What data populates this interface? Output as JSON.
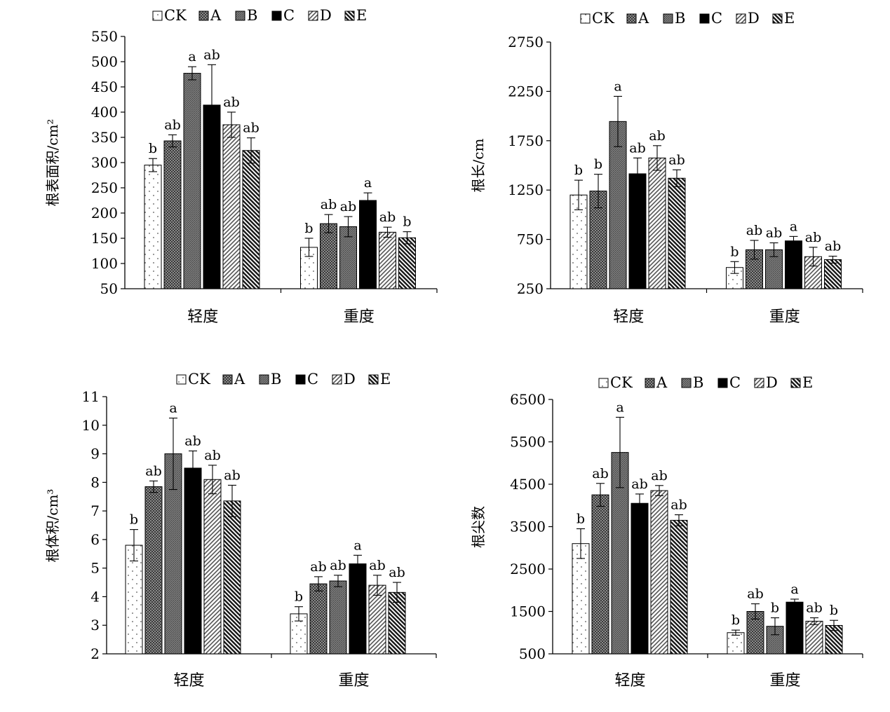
{
  "legend": {
    "entries": [
      "CK",
      "A",
      "B",
      "C",
      "D",
      "E"
    ]
  },
  "chart_data": [
    {
      "type": "bar",
      "ylabel": "根表面积/cm²",
      "ylim": [
        50,
        550
      ],
      "yticks": [
        50,
        100,
        150,
        200,
        250,
        300,
        350,
        400,
        450,
        500,
        550
      ],
      "categories": [
        "轻度",
        "重度"
      ],
      "legend_position": "top",
      "series": [
        {
          "name": "CK",
          "values": [
            295,
            132
          ],
          "errors": [
            13,
            18
          ],
          "labels": [
            "b",
            "b"
          ]
        },
        {
          "name": "A",
          "values": [
            343,
            179
          ],
          "errors": [
            12,
            18
          ],
          "labels": [
            "ab",
            "ab"
          ]
        },
        {
          "name": "B",
          "values": [
            477,
            173
          ],
          "errors": [
            13,
            20
          ],
          "labels": [
            "a",
            "ab"
          ]
        },
        {
          "name": "C",
          "values": [
            414,
            225
          ],
          "errors": [
            80,
            15
          ],
          "labels": [
            "ab",
            "a"
          ]
        },
        {
          "name": "D",
          "values": [
            375,
            162
          ],
          "errors": [
            25,
            10
          ],
          "labels": [
            "ab",
            "ab"
          ]
        },
        {
          "name": "E",
          "values": [
            324,
            151
          ],
          "errors": [
            25,
            12
          ],
          "labels": [
            "ab",
            "b"
          ]
        }
      ]
    },
    {
      "type": "bar",
      "ylabel": "根长/cm",
      "ylim": [
        250,
        2750
      ],
      "yticks": [
        250,
        750,
        1250,
        1750,
        2250,
        2750
      ],
      "categories": [
        "轻度",
        "重度"
      ],
      "legend_position": "top",
      "series": [
        {
          "name": "CK",
          "values": [
            1200,
            465
          ],
          "errors": [
            150,
            60
          ],
          "labels": [
            "b",
            "b"
          ]
        },
        {
          "name": "A",
          "values": [
            1240,
            645
          ],
          "errors": [
            170,
            95
          ],
          "labels": [
            "b",
            "ab"
          ]
        },
        {
          "name": "B",
          "values": [
            1945,
            645
          ],
          "errors": [
            255,
            70
          ],
          "labels": [
            "a",
            "ab"
          ]
        },
        {
          "name": "C",
          "values": [
            1415,
            735
          ],
          "errors": [
            160,
            45
          ],
          "labels": [
            "ab",
            "a"
          ]
        },
        {
          "name": "D",
          "values": [
            1575,
            575
          ],
          "errors": [
            125,
            95
          ],
          "labels": [
            "ab",
            "ab"
          ]
        },
        {
          "name": "E",
          "values": [
            1370,
            545
          ],
          "errors": [
            85,
            35
          ],
          "labels": [
            "ab",
            "ab"
          ]
        }
      ]
    },
    {
      "type": "bar",
      "ylabel": "根体积/cm³",
      "ylim": [
        2,
        11
      ],
      "yticks": [
        2,
        3,
        4,
        5,
        6,
        7,
        8,
        9,
        10,
        11
      ],
      "categories": [
        "轻度",
        "重度"
      ],
      "legend_position": "top",
      "series": [
        {
          "name": "CK",
          "values": [
            5.8,
            3.4
          ],
          "errors": [
            0.55,
            0.25
          ],
          "labels": [
            "b",
            "b"
          ]
        },
        {
          "name": "A",
          "values": [
            7.85,
            4.45
          ],
          "errors": [
            0.2,
            0.25
          ],
          "labels": [
            "ab",
            "ab"
          ]
        },
        {
          "name": "B",
          "values": [
            9.0,
            4.55
          ],
          "errors": [
            1.25,
            0.2
          ],
          "labels": [
            "a",
            "ab"
          ]
        },
        {
          "name": "C",
          "values": [
            8.5,
            5.15
          ],
          "errors": [
            0.6,
            0.3
          ],
          "labels": [
            "ab",
            "a"
          ]
        },
        {
          "name": "D",
          "values": [
            8.1,
            4.4
          ],
          "errors": [
            0.5,
            0.35
          ],
          "labels": [
            "ab",
            "ab"
          ]
        },
        {
          "name": "E",
          "values": [
            7.35,
            4.15
          ],
          "errors": [
            0.55,
            0.35
          ],
          "labels": [
            "ab",
            "ab"
          ]
        }
      ]
    },
    {
      "type": "bar",
      "ylabel": "根尖数",
      "ylim": [
        500,
        6500
      ],
      "yticks": [
        500,
        1500,
        2500,
        3500,
        4500,
        5500,
        6500
      ],
      "categories": [
        "轻度",
        "重度"
      ],
      "legend_position": "top",
      "series": [
        {
          "name": "CK",
          "values": [
            3100,
            1000
          ],
          "errors": [
            350,
            60
          ],
          "labels": [
            "b",
            "b"
          ]
        },
        {
          "name": "A",
          "values": [
            4250,
            1500
          ],
          "errors": [
            270,
            180
          ],
          "labels": [
            "ab",
            "ab"
          ]
        },
        {
          "name": "B",
          "values": [
            5250,
            1150
          ],
          "errors": [
            830,
            200
          ],
          "labels": [
            "a",
            "b"
          ]
        },
        {
          "name": "C",
          "values": [
            4050,
            1720
          ],
          "errors": [
            220,
            70
          ],
          "labels": [
            "ab",
            "a"
          ]
        },
        {
          "name": "D",
          "values": [
            4350,
            1270
          ],
          "errors": [
            120,
            80
          ],
          "labels": [
            "ab",
            "ab"
          ]
        },
        {
          "name": "E",
          "values": [
            3650,
            1170
          ],
          "errors": [
            130,
            120
          ],
          "labels": [
            "ab",
            "b"
          ]
        }
      ]
    }
  ]
}
